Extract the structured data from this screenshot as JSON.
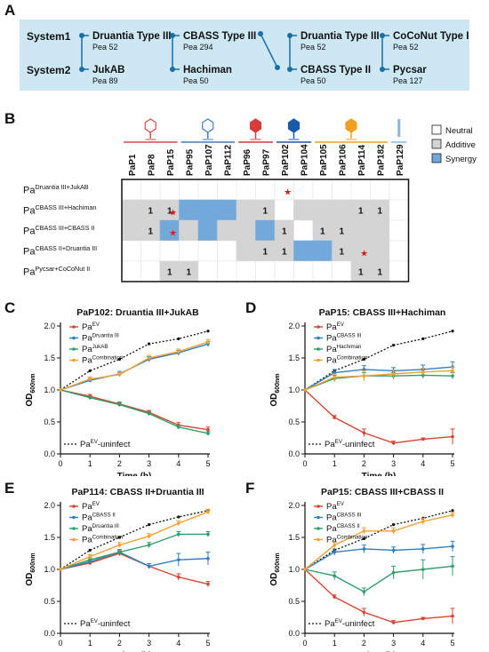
{
  "panels": {
    "A": "A",
    "B": "B",
    "C": "C",
    "D": "D",
    "E": "E",
    "F": "F"
  },
  "panelA": {
    "row_labels": [
      "System1",
      "System2"
    ],
    "pairs": [
      {
        "top": {
          "name": "Druantia Type III",
          "sub": "Pea 52"
        },
        "bottom": {
          "name": "JukAB",
          "sub": "Pea 89"
        }
      },
      {
        "top": {
          "name": "CBASS Type III",
          "sub": "Pea 294"
        },
        "bottom": {
          "name": "Hachiman",
          "sub": "Pea 50"
        }
      },
      {
        "top": {
          "name": "Druantia Type III",
          "sub": "Pea 52"
        },
        "bottom": {
          "name": "CBASS Type II",
          "sub": "Pea 50"
        }
      },
      {
        "top": {
          "name": "CoCoNut Type II",
          "sub": "Pea 52"
        },
        "bottom": {
          "name": "Pycsar",
          "sub": "Pea 127"
        }
      }
    ],
    "colors": {
      "bg": "#cde7f3",
      "line": "#1a6fa6"
    }
  },
  "panelB": {
    "phages": [
      "PaP1",
      "PaP8",
      "PaP15",
      "PaP95",
      "PaP107",
      "PaP112",
      "PaP96",
      "PaP97",
      "PaP102",
      "PaP104",
      "PaP105",
      "PaP106",
      "PaP114",
      "PaP182",
      "PaP129"
    ],
    "rows": [
      {
        "pre": "Pa",
        "sup": "Druantia III+JukAB"
      },
      {
        "pre": "Pa",
        "sup": "CBASS III+Hachiman"
      },
      {
        "pre": "Pa",
        "sup": "CBASS III+CBASS II"
      },
      {
        "pre": "Pa",
        "sup": "CBASS II+Druantia III"
      },
      {
        "pre": "Pa",
        "sup": "Pycsar+CoCoNut II"
      }
    ],
    "cells": [
      [
        "N",
        "N",
        "N",
        "N",
        "N",
        "N",
        "N",
        "N",
        "N",
        "N",
        "N",
        "N",
        "N",
        "N",
        "N"
      ],
      [
        "A",
        "A",
        "A",
        "S",
        "S",
        "S",
        "A",
        "A",
        "N",
        "A",
        "A",
        "A",
        "A",
        "A",
        "N"
      ],
      [
        "A",
        "A",
        "S",
        "A",
        "S",
        "A",
        "A",
        "S",
        "A",
        "N",
        "A",
        "A",
        "A",
        "A",
        "N"
      ],
      [
        "N",
        "N",
        "N",
        "N",
        "N",
        "N",
        "A",
        "A",
        "A",
        "S",
        "S",
        "A",
        "A",
        "A",
        "N"
      ],
      [
        "N",
        "N",
        "A",
        "A",
        "N",
        "N",
        "N",
        "N",
        "N",
        "N",
        "N",
        "N",
        "A",
        "A",
        "N"
      ]
    ],
    "ones": [
      [
        1,
        1
      ],
      [
        1,
        2
      ],
      [
        1,
        7
      ],
      [
        1,
        12
      ],
      [
        1,
        13
      ],
      [
        2,
        1
      ],
      [
        2,
        8
      ],
      [
        2,
        10
      ],
      [
        2,
        11
      ],
      [
        3,
        7
      ],
      [
        3,
        8
      ],
      [
        3,
        11
      ],
      [
        4,
        2
      ],
      [
        4,
        3
      ],
      [
        4,
        12
      ],
      [
        4,
        13
      ]
    ],
    "one_text": "1",
    "stars": [
      [
        0,
        8
      ],
      [
        1,
        2
      ],
      [
        2,
        2
      ],
      [
        3,
        12
      ]
    ],
    "legend": [
      {
        "label": "Neutral",
        "color": "#ffffff"
      },
      {
        "label": "Additive",
        "color": "#d4d4d4"
      },
      {
        "label": "Synergy",
        "color": "#72a9da"
      }
    ],
    "phage_colors": [
      "#d94a4a",
      "#3c7fc4",
      "#d93a3a",
      "#1a5aa8",
      "#f0a020",
      "#8ab8e0"
    ]
  },
  "chart_data": [
    {
      "id": "C",
      "type": "line",
      "title": "PaP102: Druantia III+JukAB",
      "xlabel": "Time (h)",
      "ylabel": "OD600nm",
      "xlim": [
        0,
        5
      ],
      "ylim": [
        0,
        2
      ],
      "x": [
        0,
        1,
        2,
        3,
        4,
        5
      ],
      "xticks": [
        "0",
        "1",
        "2",
        "3",
        "4",
        "5"
      ],
      "yticks": [
        "0.0",
        "0.5",
        "1.0",
        "1.5",
        "2.0"
      ],
      "series": [
        {
          "pre": "Pa",
          "sup": "EV",
          "color": "#d9432f",
          "values": [
            1.0,
            0.9,
            0.78,
            0.65,
            0.45,
            0.38
          ],
          "err": [
            0,
            0.03,
            0.03,
            0.03,
            0.04,
            0.04
          ]
        },
        {
          "pre": "Pa",
          "sup": "Druantia III",
          "color": "#2f7fbf",
          "values": [
            1.0,
            1.15,
            1.25,
            1.48,
            1.58,
            1.72
          ],
          "err": [
            0,
            0.03,
            0.04,
            0.04,
            0.04,
            0.04
          ]
        },
        {
          "pre": "Pa",
          "sup": "JukAB",
          "color": "#2e9e6a",
          "values": [
            1.0,
            0.88,
            0.77,
            0.63,
            0.42,
            0.32
          ],
          "err": [
            0,
            0.03,
            0.03,
            0.03,
            0.03,
            0.03
          ]
        },
        {
          "pre": "Pa",
          "sup": "Combination",
          "color": "#f5a030",
          "values": [
            1.0,
            1.17,
            1.24,
            1.5,
            1.6,
            1.75
          ],
          "err": [
            0,
            0.03,
            0.03,
            0.04,
            0.04,
            0.04
          ]
        }
      ],
      "uninfect": {
        "pre": "Pa",
        "sup": "EV",
        "post": "-uninfect",
        "color": "#111111",
        "values": [
          1.0,
          1.3,
          1.48,
          1.72,
          1.8,
          1.92
        ]
      }
    },
    {
      "id": "D",
      "type": "line",
      "title": "PaP15: CBASS III+Hachiman",
      "xlabel": "Time (h)",
      "ylabel": "OD600nm",
      "xlim": [
        0,
        5
      ],
      "ylim": [
        0,
        2
      ],
      "x": [
        0,
        1,
        2,
        3,
        4,
        5
      ],
      "xticks": [
        "0",
        "1",
        "2",
        "3",
        "4",
        "5"
      ],
      "yticks": [
        "0.0",
        "0.5",
        "1.0",
        "1.5",
        "2.0"
      ],
      "series": [
        {
          "pre": "Pa",
          "sup": "EV",
          "color": "#d9432f",
          "values": [
            1.0,
            0.57,
            0.33,
            0.17,
            0.23,
            0.27
          ],
          "err": [
            0,
            0.03,
            0.06,
            0.03,
            0.02,
            0.12
          ]
        },
        {
          "pre": "Pa",
          "sup": "CBASS III",
          "color": "#2f7fbf",
          "values": [
            1.0,
            1.27,
            1.32,
            1.3,
            1.32,
            1.36
          ],
          "err": [
            0,
            0.05,
            0.06,
            0.05,
            0.07,
            0.08
          ]
        },
        {
          "pre": "Pa",
          "sup": "Hachiman",
          "color": "#2e9e6a",
          "values": [
            1.0,
            1.18,
            1.22,
            1.22,
            1.23,
            1.22
          ],
          "err": [
            0,
            0.05,
            0.05,
            0.05,
            0.05,
            0.05
          ]
        },
        {
          "pre": "Pa",
          "sup": "Combination",
          "color": "#f5a030",
          "values": [
            1.0,
            1.2,
            1.22,
            1.25,
            1.28,
            1.3
          ],
          "err": [
            0,
            0.05,
            0.08,
            0.06,
            0.06,
            0.06
          ]
        }
      ],
      "uninfect": {
        "pre": "Pa",
        "sup": "EV",
        "post": "-uninfect",
        "color": "#111111",
        "values": [
          1.0,
          1.3,
          1.48,
          1.7,
          1.8,
          1.92
        ]
      }
    },
    {
      "id": "E",
      "type": "line",
      "title": "PaP114: CBASS II+Druantia III",
      "xlabel": "Time (h)",
      "ylabel": "OD600nm",
      "xlim": [
        0,
        5
      ],
      "ylim": [
        0,
        2
      ],
      "x": [
        0,
        1,
        2,
        3,
        4,
        5
      ],
      "xticks": [
        "0",
        "1",
        "2",
        "3",
        "4",
        "5"
      ],
      "yticks": [
        "0.0",
        "0.5",
        "1.0",
        "1.5",
        "2.0"
      ],
      "series": [
        {
          "pre": "Pa",
          "sup": "EV",
          "color": "#d9432f",
          "values": [
            1.0,
            1.1,
            1.25,
            1.05,
            0.88,
            0.77
          ],
          "err": [
            0,
            0.03,
            0.04,
            0.04,
            0.05,
            0.04
          ]
        },
        {
          "pre": "Pa",
          "sup": "CBASS II",
          "color": "#2f7fbf",
          "values": [
            1.0,
            1.12,
            1.27,
            1.05,
            1.15,
            1.17
          ],
          "err": [
            0,
            0.03,
            0.04,
            0.04,
            0.1,
            0.1
          ]
        },
        {
          "pre": "Pa",
          "sup": "Druantia III",
          "color": "#2e9e6a",
          "values": [
            1.0,
            1.15,
            1.27,
            1.38,
            1.55,
            1.55
          ],
          "err": [
            0,
            0.03,
            0.04,
            0.04,
            0.04,
            0.04
          ]
        },
        {
          "pre": "Pa",
          "sup": "Combination",
          "color": "#f5a030",
          "values": [
            1.0,
            1.2,
            1.38,
            1.52,
            1.72,
            1.9
          ],
          "err": [
            0,
            0.03,
            0.04,
            0.04,
            0.04,
            0.04
          ]
        }
      ],
      "uninfect": {
        "pre": "Pa",
        "sup": "EV",
        "post": "-uninfect",
        "color": "#111111",
        "values": [
          1.0,
          1.3,
          1.5,
          1.7,
          1.82,
          1.92
        ]
      }
    },
    {
      "id": "F",
      "type": "line",
      "title": "PaP15: CBASS III+CBASS II",
      "xlabel": "Time (h)",
      "ylabel": "OD600nm",
      "xlim": [
        0,
        5
      ],
      "ylim": [
        0,
        2
      ],
      "x": [
        0,
        1,
        2,
        3,
        4,
        5
      ],
      "xticks": [
        "0",
        "1",
        "2",
        "3",
        "4",
        "5"
      ],
      "yticks": [
        "0.0",
        "0.5",
        "1.0",
        "1.5",
        "2.0"
      ],
      "series": [
        {
          "pre": "Pa",
          "sup": "EV",
          "color": "#d9432f",
          "values": [
            1.0,
            0.57,
            0.33,
            0.17,
            0.23,
            0.27
          ],
          "err": [
            0,
            0.03,
            0.06,
            0.03,
            0.02,
            0.12
          ]
        },
        {
          "pre": "Pa",
          "sup": "CBASS III",
          "color": "#2f7fbf",
          "values": [
            1.0,
            1.27,
            1.32,
            1.3,
            1.32,
            1.36
          ],
          "err": [
            0,
            0.05,
            0.06,
            0.05,
            0.07,
            0.08
          ]
        },
        {
          "pre": "Pa",
          "sup": "CBASS II",
          "color": "#2e9e6a",
          "values": [
            1.0,
            0.9,
            0.65,
            0.95,
            1.0,
            1.05
          ],
          "err": [
            0,
            0.06,
            0.06,
            0.1,
            0.15,
            0.15
          ]
        },
        {
          "pre": "Pa",
          "sup": "Combination",
          "color": "#f5a030",
          "values": [
            1.0,
            1.38,
            1.6,
            1.6,
            1.75,
            1.85
          ],
          "err": [
            0,
            0.05,
            0.05,
            0.05,
            0.05,
            0.04
          ]
        }
      ],
      "uninfect": {
        "pre": "Pa",
        "sup": "EV",
        "post": "-uninfect",
        "color": "#111111",
        "values": [
          1.0,
          1.3,
          1.48,
          1.7,
          1.8,
          1.92
        ]
      }
    }
  ]
}
